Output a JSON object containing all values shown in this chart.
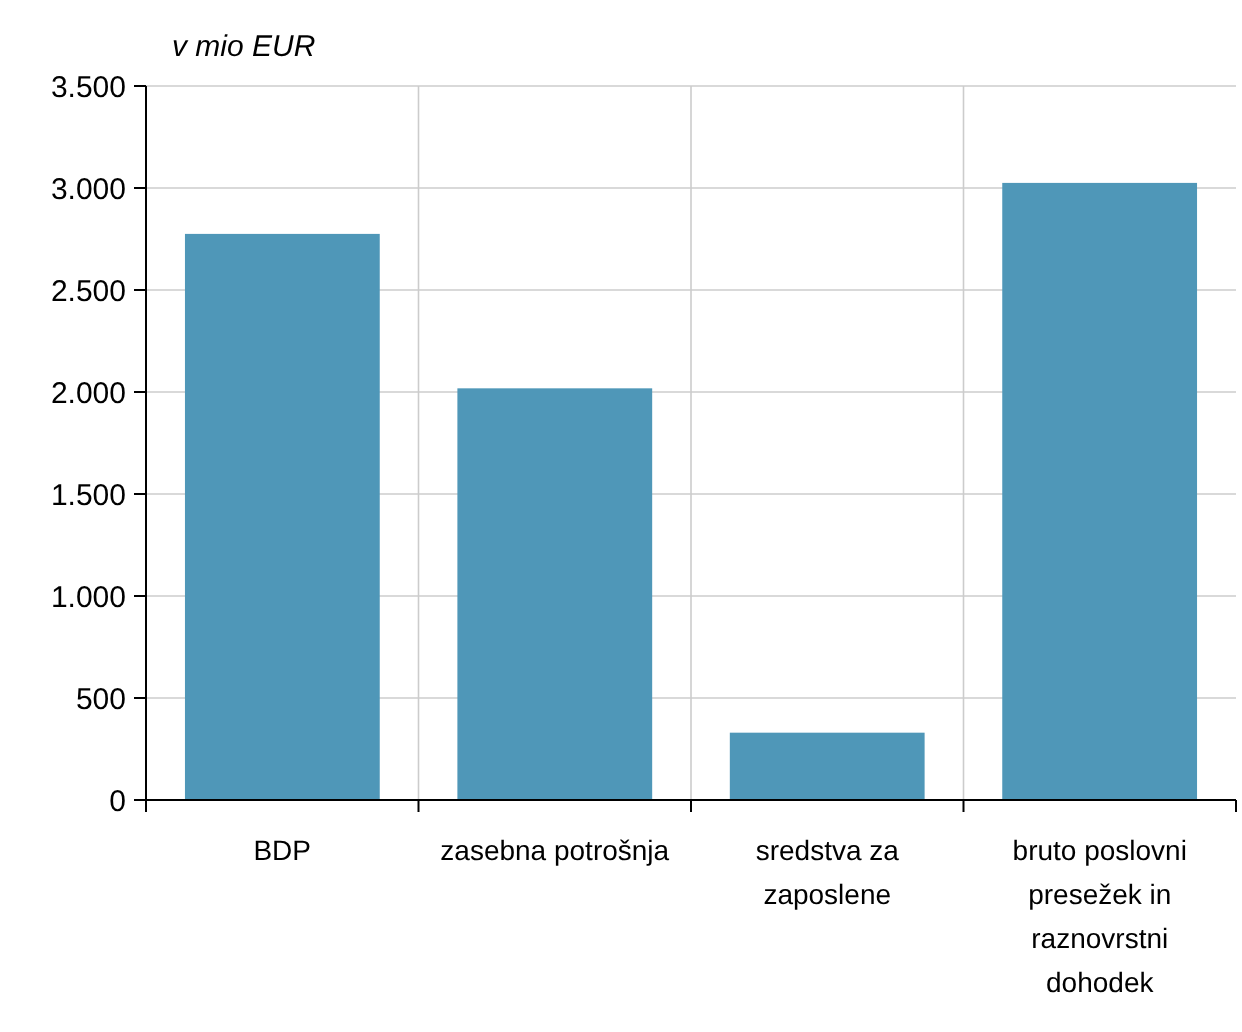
{
  "chart_data": {
    "type": "bar",
    "ylabel": "v mio EUR",
    "categories": [
      "BDP",
      "zasebna potrošnja",
      "sredstva za zaposlene",
      "bruto poslovni presežek in raznovrstni dohodek"
    ],
    "values": [
      2775,
      2018,
      330,
      3025
    ],
    "color": "#4f97b8",
    "ylim": [
      0,
      3500
    ],
    "yticks": [
      0,
      {
        "value": 500,
        "label": "500"
      },
      {
        "value": 1000,
        "label": "1.000"
      },
      {
        "value": 1500,
        "label": "1.500"
      },
      {
        "value": 2000,
        "label": "2.000"
      },
      {
        "value": 2500,
        "label": "2.500"
      },
      {
        "value": 3000,
        "label": "3.000"
      },
      {
        "value": 3500,
        "label": "3.500"
      }
    ],
    "grid": true
  }
}
